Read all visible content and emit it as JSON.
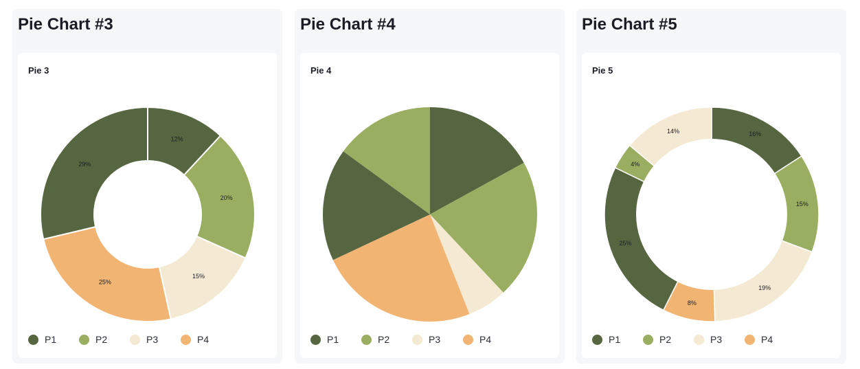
{
  "colors": {
    "P1": "#566641",
    "P2": "#9aae62",
    "P3": "#f4e9d2",
    "P4": "#f2b472"
  },
  "panels": [
    {
      "title": "Pie Chart #3",
      "card_title": "Pie 3",
      "legend": [
        "P1",
        "P2",
        "P3",
        "P4"
      ]
    },
    {
      "title": "Pie Chart #4",
      "card_title": "Pie 4",
      "legend": [
        "P1",
        "P2",
        "P3",
        "P4"
      ]
    },
    {
      "title": "Pie Chart #5",
      "card_title": "Pie 5",
      "legend": [
        "P1",
        "P2",
        "P3",
        "P4"
      ]
    }
  ],
  "chart_data": [
    {
      "type": "pie",
      "variant": "donut",
      "title": "Pie 3",
      "legend": "bottom-left",
      "slices": [
        {
          "category": "P1",
          "value": 12,
          "label": "12%"
        },
        {
          "category": "P2",
          "value": 20,
          "label": "20%"
        },
        {
          "category": "P3",
          "value": 15,
          "label": "15%"
        },
        {
          "category": "P4",
          "value": 25,
          "label": "25%"
        },
        {
          "category": "P1",
          "value": 29,
          "label": "29%"
        }
      ]
    },
    {
      "type": "pie",
      "variant": "pie",
      "title": "Pie 4",
      "legend": "bottom-left",
      "slices": [
        {
          "category": "P1",
          "value": 17,
          "label": ""
        },
        {
          "category": "P2",
          "value": 21,
          "label": ""
        },
        {
          "category": "P3",
          "value": 6,
          "label": ""
        },
        {
          "category": "P4",
          "value": 24,
          "label": ""
        },
        {
          "category": "P1",
          "value": 17,
          "label": ""
        },
        {
          "category": "P2",
          "value": 15,
          "label": ""
        }
      ]
    },
    {
      "type": "pie",
      "variant": "donut",
      "title": "Pie 5",
      "legend": "bottom-left",
      "slices": [
        {
          "category": "P1",
          "value": 16,
          "label": "16%"
        },
        {
          "category": "P2",
          "value": 15,
          "label": "15%"
        },
        {
          "category": "P3",
          "value": 19,
          "label": "19%"
        },
        {
          "category": "P4",
          "value": 8,
          "label": "8%"
        },
        {
          "category": "P1",
          "value": 25,
          "label": "25%"
        },
        {
          "category": "P2",
          "value": 4,
          "label": "4%"
        },
        {
          "category": "P3",
          "value": 14,
          "label": "14%"
        }
      ]
    }
  ]
}
